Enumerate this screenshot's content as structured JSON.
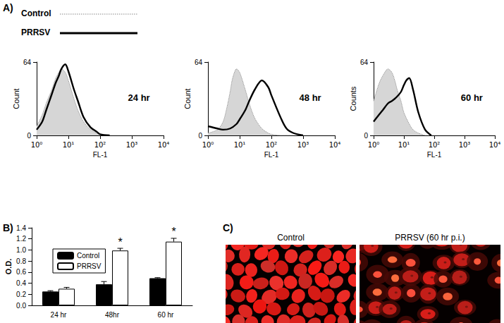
{
  "panel_labels": {
    "A": "A)",
    "B": "B)",
    "C": "C)"
  },
  "chart_data": [
    {
      "type": "line",
      "annotation": "24 hr",
      "x_label": "FL-1",
      "y_label": "Count",
      "log": "x",
      "xlim": [
        1,
        10000
      ],
      "xticks": [
        {
          "value": 1,
          "label": "10⁰"
        },
        {
          "value": 10,
          "label": "10¹"
        },
        {
          "value": 100,
          "label": "10²"
        },
        {
          "value": 1000,
          "label": "10³"
        },
        {
          "value": 10000,
          "label": "10⁴"
        }
      ],
      "ylim": [
        0,
        64
      ],
      "yticks": [
        0,
        64
      ],
      "grid": false,
      "series": [
        {
          "name": "Control",
          "type": "area",
          "color": "#888888",
          "line_style": "dotted",
          "x": [
            1,
            1.5,
            2,
            3,
            4,
            5,
            6,
            8,
            10,
            15,
            20,
            30,
            50,
            80,
            100,
            200
          ],
          "values": [
            8,
            18,
            28,
            40,
            50,
            55,
            58,
            55,
            48,
            32,
            22,
            12,
            5,
            2,
            1,
            0
          ]
        },
        {
          "name": "PRRSV",
          "type": "line",
          "color": "#000000",
          "line_style": "solid",
          "x": [
            1,
            1.5,
            2,
            3,
            4,
            5,
            6,
            8,
            10,
            15,
            20,
            30,
            50,
            80,
            100,
            200
          ],
          "values": [
            5,
            12,
            22,
            36,
            46,
            52,
            58,
            62,
            56,
            40,
            30,
            16,
            7,
            3,
            1,
            0
          ]
        }
      ]
    },
    {
      "type": "line",
      "annotation": "48 hr",
      "x_label": "FL-1",
      "y_label": "Count",
      "log": "x",
      "xlim": [
        1,
        10000
      ],
      "xticks": [
        {
          "value": 1,
          "label": "10⁰"
        },
        {
          "value": 10,
          "label": "10¹"
        },
        {
          "value": 100,
          "label": "10²"
        },
        {
          "value": 1000,
          "label": "10³"
        },
        {
          "value": 10000,
          "label": "10⁴"
        }
      ],
      "ylim": [
        0,
        64
      ],
      "yticks": [
        0,
        64
      ],
      "grid": false,
      "series": [
        {
          "name": "Control",
          "type": "area",
          "color": "#888888",
          "line_style": "dotted",
          "x": [
            1,
            2,
            3,
            4,
            5,
            6,
            8,
            10,
            15,
            20,
            30,
            50,
            80,
            100,
            200,
            500
          ],
          "values": [
            2,
            5,
            12,
            25,
            38,
            50,
            58,
            55,
            40,
            28,
            15,
            6,
            2,
            1,
            0,
            0
          ]
        },
        {
          "name": "PRRSV",
          "type": "line",
          "color": "#000000",
          "line_style": "solid",
          "x": [
            1,
            2,
            3,
            5,
            8,
            10,
            15,
            20,
            30,
            50,
            80,
            100,
            200,
            300,
            500,
            1000
          ],
          "values": [
            8,
            6,
            5,
            6,
            10,
            14,
            22,
            30,
            40,
            48,
            42,
            35,
            15,
            6,
            2,
            0
          ]
        }
      ]
    },
    {
      "type": "line",
      "annotation": "60 hr",
      "x_label": "FL-1",
      "y_label": "Counts",
      "log": "x",
      "xlim": [
        1,
        10000
      ],
      "xticks": [
        {
          "value": 1,
          "label": "10⁰"
        },
        {
          "value": 10,
          "label": "10¹"
        },
        {
          "value": 100,
          "label": "10²"
        },
        {
          "value": 1000,
          "label": "10³"
        },
        {
          "value": 10000,
          "label": "10⁴"
        }
      ],
      "ylim": [
        0,
        64
      ],
      "yticks": [
        0,
        64
      ],
      "grid": false,
      "series": [
        {
          "name": "Control",
          "type": "area",
          "color": "#888888",
          "line_style": "dotted",
          "x": [
            1,
            1.5,
            2,
            3,
            4,
            5,
            6,
            8,
            10,
            15,
            20,
            30,
            50
          ],
          "values": [
            30,
            45,
            52,
            58,
            55,
            48,
            40,
            30,
            20,
            10,
            5,
            2,
            0
          ]
        },
        {
          "name": "PRRSV",
          "type": "line",
          "color": "#000000",
          "line_style": "solid",
          "x": [
            1,
            1.5,
            2,
            3,
            4,
            5,
            6,
            8,
            10,
            12,
            15,
            20,
            30,
            50,
            80
          ],
          "values": [
            12,
            18,
            22,
            28,
            30,
            32,
            34,
            38,
            44,
            48,
            50,
            40,
            20,
            5,
            0
          ]
        }
      ]
    },
    {
      "type": "bar",
      "y_label": "O.D.",
      "categories": [
        "24 hr",
        "48hr",
        "60 hr"
      ],
      "ylim": [
        0,
        1.4
      ],
      "yticks": [
        {
          "value": 0,
          "label": "0.0"
        },
        0.2,
        0.4,
        0.6,
        0.8,
        {
          "value": 1,
          "label": "1.0"
        },
        1.2,
        1.4
      ],
      "grid": false,
      "legend": "upper left",
      "series": [
        {
          "name": "Control",
          "color": "#000000",
          "values": [
            0.25,
            0.38,
            0.49
          ],
          "errors": [
            0.015,
            0.05,
            0.01
          ]
        },
        {
          "name": "PRRSV",
          "color": "#ffffff",
          "values": [
            0.3,
            0.99,
            1.15
          ],
          "errors": [
            0.025,
            0.04,
            0.06
          ]
        }
      ],
      "annotations": [
        {
          "category": "48hr",
          "series": "PRRSV",
          "text": "*"
        },
        {
          "category": "60 hr",
          "series": "PRRSV",
          "text": "*"
        }
      ]
    }
  ],
  "images": {
    "items": [
      {
        "label": "Control"
      },
      {
        "label": "PRRSV (60 hr p.i.)"
      }
    ]
  }
}
